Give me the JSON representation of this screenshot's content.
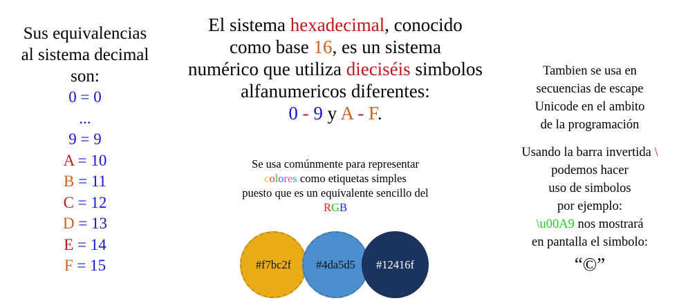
{
  "left": {
    "heading_lines": [
      "Sus equivalencias",
      "al sistema decimal",
      "son:"
    ],
    "rows": [
      {
        "sym": "0",
        "val": "0"
      },
      {
        "ellipsis": "..."
      },
      {
        "sym": "9",
        "val": "9"
      },
      {
        "sym": "A",
        "val": "10"
      },
      {
        "sym": "B",
        "val": "11"
      },
      {
        "sym": "C",
        "val": "12"
      },
      {
        "sym": "D",
        "val": "13"
      },
      {
        "sym": "E",
        "val": "14"
      },
      {
        "sym": "F",
        "val": "15"
      }
    ],
    "eq_sign": "="
  },
  "center": {
    "l1_a": "El sistema ",
    "l1_hex": "hexadecimal",
    "l1_b": ", conocido",
    "l2_a": "como base ",
    "l2_num": "16",
    "l2_b": ", es un sistema",
    "l3_a": "numérico que utiliza ",
    "l3_word": "dieciséis",
    "l3_b": " simbolos",
    "l4": "alfanumericos diferentes:",
    "range": {
      "d0": "0",
      "dash1": " - ",
      "d9": "9",
      "y": " y ",
      "a": "A",
      "dash2": " - ",
      "f": "F",
      "end": "."
    }
  },
  "colors_note": {
    "l1": "Se usa comúnmente para representar",
    "colores_word": "colores",
    "l2_rest": " como etiquetas simples",
    "l3": "puesto que es un equivalente sencillo del",
    "rgb": [
      "R",
      "G",
      "B"
    ]
  },
  "swatches": [
    {
      "label": "#f7bc2f",
      "color": "#e9ac16",
      "text_color": "#111111"
    },
    {
      "label": "#4da5d5",
      "color": "#4b8fce",
      "text_color": "#111111"
    },
    {
      "label": "#12416f",
      "color": "#1b345f",
      "text_color": "#ffffff"
    }
  ],
  "right": {
    "p1": [
      "Tambien se usa en",
      "secuencias de escape",
      "Unicode en el ambito",
      "de la programación"
    ],
    "p2_l1_a": "Usando la barra invertida ",
    "p2_backslash": "\\",
    "p2_lines": [
      "podemos hacer",
      "uso de simbolos",
      "por ejemplo:"
    ],
    "p2_code": "\\u00A9",
    "p2_code_rest": " nos mostrará",
    "p2_l7": "en pantalla el simbolo:",
    "result": "“©”"
  },
  "palette": {
    "blue": "#1414d2",
    "red": "#c4161c",
    "orange": "#d2601a",
    "green": "#18d018",
    "rainbow": [
      "#f2c200",
      "#ff3b3b",
      "#32cd32",
      "#3b6cff",
      "#d040ff",
      "#ff4fa3",
      "#00c3e0"
    ]
  }
}
